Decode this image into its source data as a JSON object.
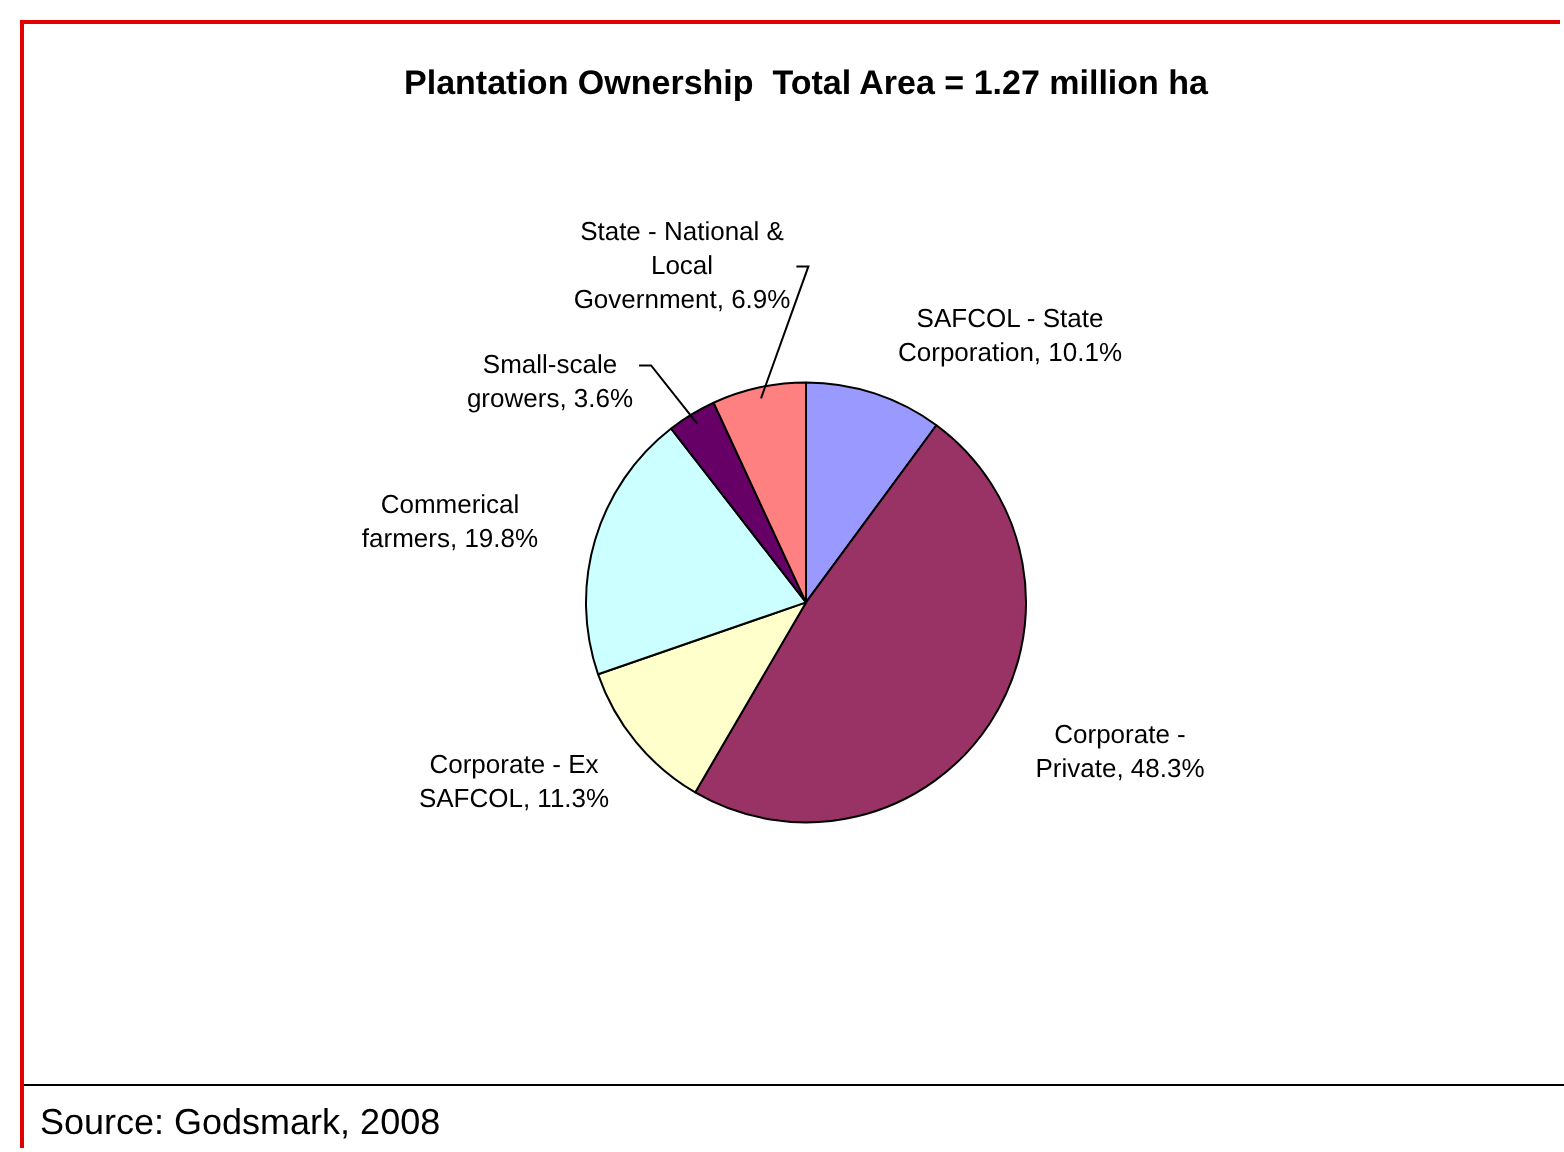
{
  "chart_data": {
    "type": "pie",
    "title": "Plantation Ownership  Total Area = 1.27 million ha",
    "categories": [
      "SAFCOL - State Corporation",
      "Corporate - Private",
      "Corporate - Ex SAFCOL",
      "Commerical farmers",
      "Small-scale growers",
      "State - National & Local Government"
    ],
    "values": [
      10.1,
      48.3,
      11.3,
      19.8,
      3.6,
      6.9
    ],
    "value_labels": [
      "10.1%",
      "48.3%",
      "11.3%",
      "19.8%",
      "3.6%",
      "6.9%"
    ],
    "colors": [
      "#9999ff",
      "#993366",
      "#ffffcc",
      "#ccffff",
      "#660066",
      "#ff8080"
    ],
    "legend": false,
    "annotations": [
      "Source: Godsmark, 2008"
    ]
  }
}
